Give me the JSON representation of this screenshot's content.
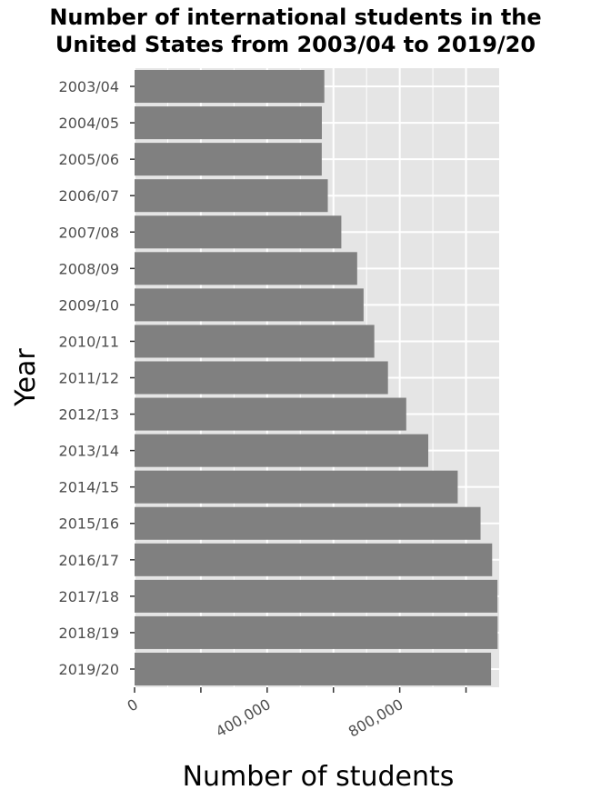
{
  "chart_data": {
    "type": "bar",
    "orientation": "horizontal",
    "title_lines": [
      "Number of international students in the",
      "United States from 2003/04 to 2019/20"
    ],
    "xlabel": "Number of students",
    "ylabel": "Year",
    "xlim": [
      0,
      1100000
    ],
    "x_ticks": [
      0,
      200000,
      400000,
      600000,
      800000,
      1000000
    ],
    "x_tick_labels": [
      "0",
      "",
      "400,000",
      "",
      "800,000",
      ""
    ],
    "grid": true,
    "colors": {
      "panel": "#e5e5e5",
      "bar": "#808080",
      "grid": "#ffffff",
      "tick_text": "#4d4d4d"
    },
    "categories": [
      "2003/04",
      "2004/05",
      "2005/06",
      "2006/07",
      "2007/08",
      "2008/09",
      "2009/10",
      "2010/11",
      "2011/12",
      "2012/13",
      "2013/14",
      "2014/15",
      "2015/16",
      "2016/17",
      "2017/18",
      "2018/19",
      "2019/20"
    ],
    "values": [
      572509,
      565039,
      564766,
      582984,
      623805,
      671616,
      690923,
      723277,
      764495,
      819644,
      886052,
      974926,
      1043839,
      1078822,
      1094792,
      1095299,
      1075496
    ]
  }
}
